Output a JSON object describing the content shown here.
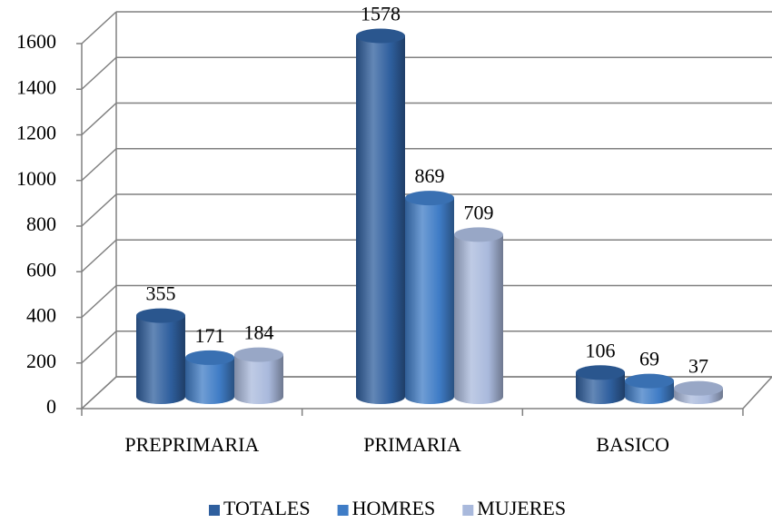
{
  "chart_data": {
    "type": "bar3d",
    "categories": [
      "PREPRIMARIA",
      "PRIMARIA",
      "BASICO"
    ],
    "series": [
      {
        "name": "TOTALES",
        "color": "#2f5f9e",
        "values": [
          355,
          1578,
          106
        ]
      },
      {
        "name": "HOMRES",
        "color": "#3f7cc6",
        "values": [
          171,
          869,
          69
        ]
      },
      {
        "name": "MUJERES",
        "color": "#a9b9dc",
        "values": [
          184,
          709,
          37
        ]
      }
    ],
    "ylim": [
      0,
      1600
    ],
    "yticks": [
      0,
      200,
      400,
      600,
      800,
      1000,
      1200,
      1400,
      1600
    ],
    "grid": true,
    "legend": "bottom"
  }
}
